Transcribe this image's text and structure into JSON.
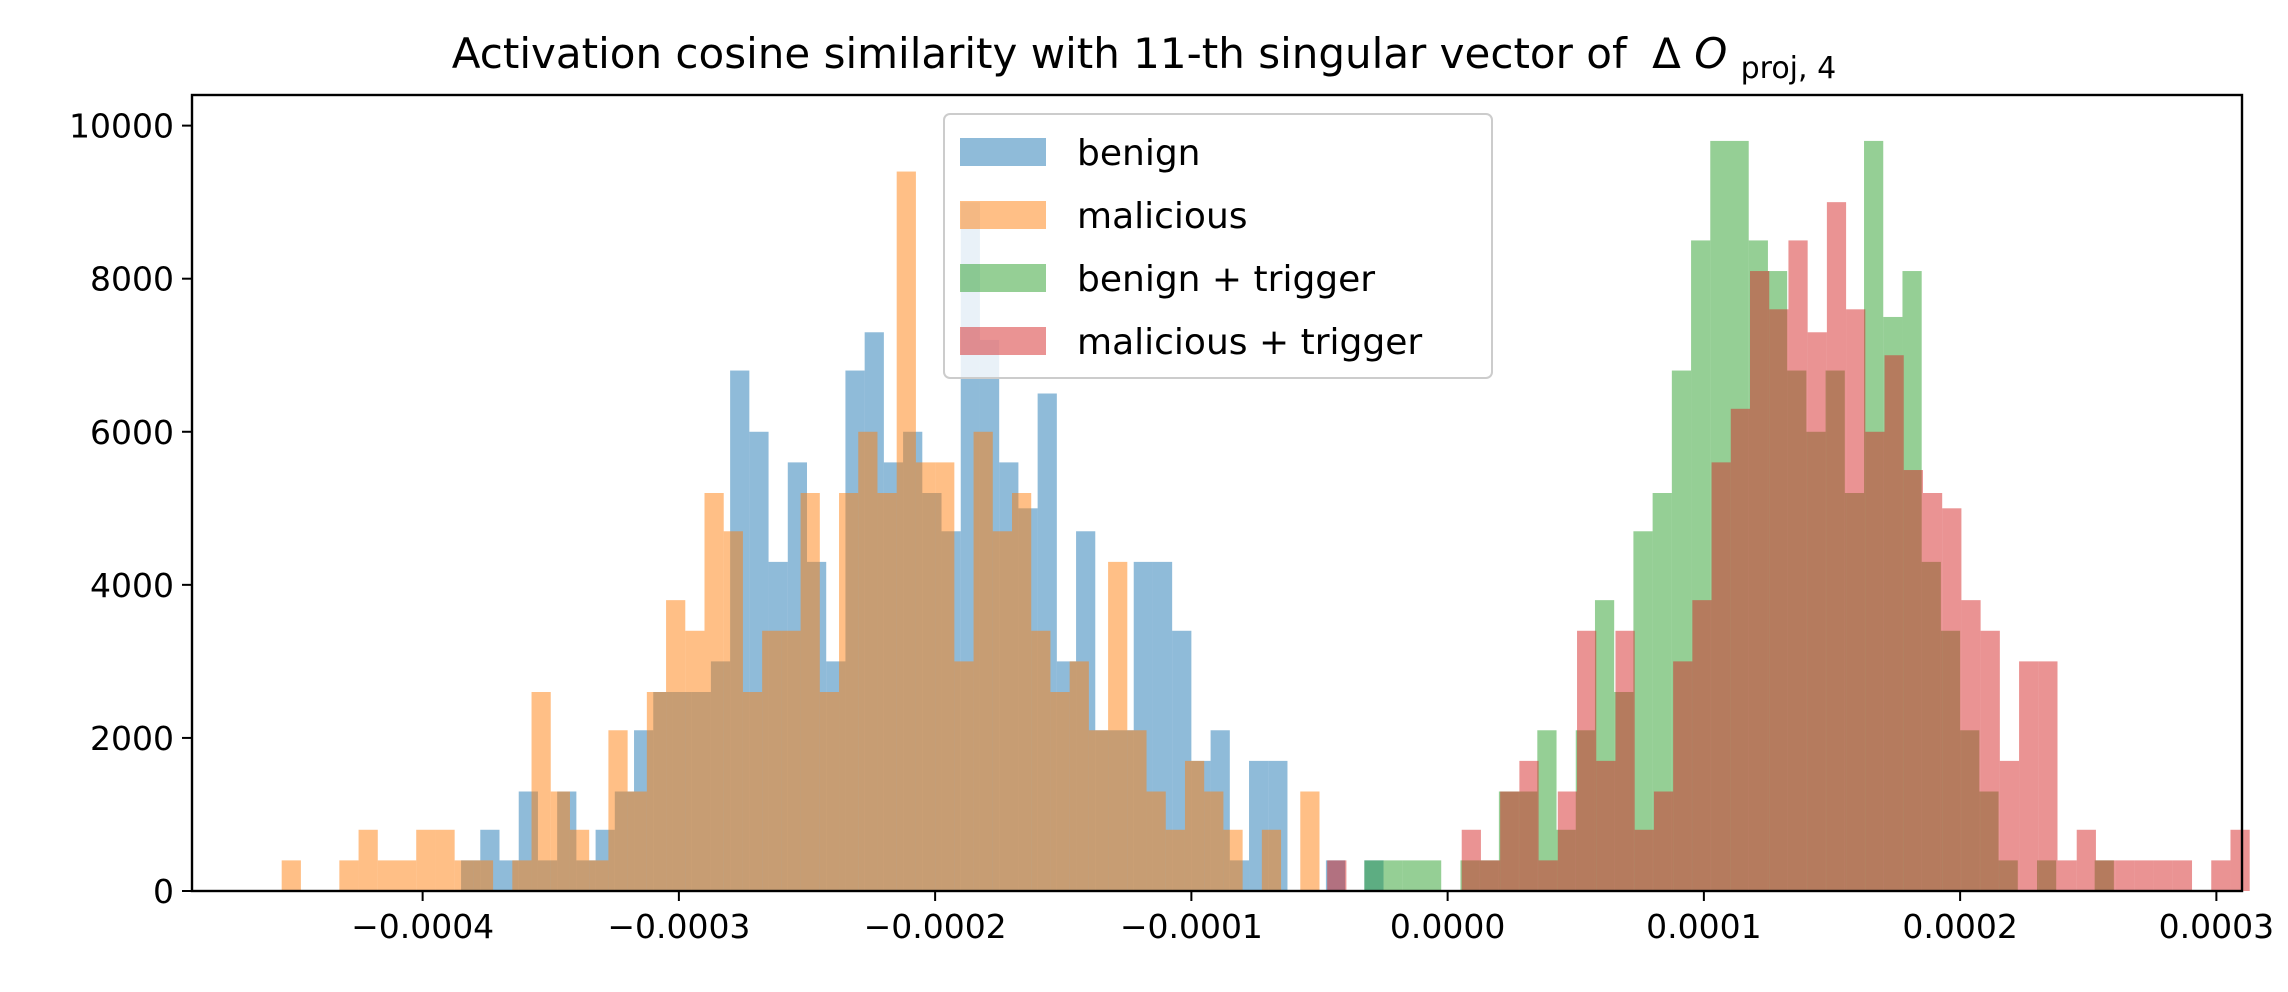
{
  "chart_data": {
    "type": "histogram",
    "title": "Activation cosine similarity with 11-th singular vector of",
    "title_math": {
      "delta": "Δ",
      "symbol": "O",
      "subscript": "proj, 4"
    },
    "xlabel": "",
    "ylabel": "",
    "xlim": [
      -0.00049,
      0.00031
    ],
    "ylim": [
      0,
      10400
    ],
    "bin_width": 7.5e-06,
    "x_ticks": [
      -0.0004,
      -0.0003,
      -0.0002,
      -0.0001,
      0.0,
      0.0001,
      0.0002,
      0.0003
    ],
    "x_tick_labels": [
      "−0.0004",
      "−0.0003",
      "−0.0002",
      "−0.0001",
      "0.0000",
      "0.0001",
      "0.0002",
      "0.0003"
    ],
    "y_ticks": [
      0,
      2000,
      4000,
      6000,
      8000,
      10000
    ],
    "y_tick_labels": [
      "0",
      "2000",
      "4000",
      "6000",
      "8000",
      "10000"
    ],
    "grid": false,
    "legend_position": "upper-center",
    "alpha": 0.5,
    "series": [
      {
        "name": "benign",
        "color": "#1f77b4",
        "bin_start": -0.000385,
        "counts": [
          400,
          800,
          400,
          1300,
          400,
          1300,
          400,
          800,
          1300,
          2100,
          2600,
          2600,
          2600,
          3000,
          6800,
          6000,
          4300,
          5600,
          4300,
          3000,
          6800,
          7300,
          5600,
          6000,
          5200,
          4700,
          9000,
          7200,
          5600,
          5000,
          6500,
          3000,
          4700,
          2100,
          2100,
          4300,
          4300,
          3400,
          1700,
          2100,
          400,
          1700,
          1700,
          0,
          0,
          400,
          0,
          400
        ]
      },
      {
        "name": "malicious",
        "color": "#ff7f0e",
        "bin_start": -0.000455,
        "counts": [
          400,
          0,
          0,
          400,
          800,
          400,
          400,
          800,
          800,
          400,
          400,
          0,
          400,
          2600,
          1300,
          800,
          400,
          2100,
          1300,
          2600,
          3800,
          3400,
          5200,
          4700,
          2600,
          3400,
          3400,
          5200,
          2600,
          5200,
          6000,
          5200,
          9400,
          5600,
          5600,
          3000,
          6000,
          4700,
          5200,
          3400,
          2600,
          3000,
          2100,
          4300,
          2100,
          1300,
          800,
          1700,
          1300,
          800,
          0,
          800,
          0,
          1300
        ]
      },
      {
        "name": "benign + trigger",
        "color": "#2ca02c",
        "bin_start": -3.25e-05,
        "counts": [
          400,
          400,
          400,
          400,
          0,
          400,
          400,
          1300,
          1300,
          2100,
          800,
          2100,
          3800,
          2600,
          4700,
          5200,
          6800,
          8500,
          9800,
          9800,
          8500,
          8100,
          6800,
          6000,
          6800,
          5200,
          9800,
          7500,
          8100,
          4300,
          3400,
          2100,
          1300,
          400,
          0,
          400,
          0,
          0,
          400
        ]
      },
      {
        "name": "malicious + trigger",
        "color": "#d62728",
        "bin_start": -4.7e-05,
        "counts": [
          400,
          0,
          0,
          0,
          0,
          0,
          0,
          800,
          400,
          1300,
          1700,
          400,
          1300,
          3400,
          1700,
          3400,
          800,
          1300,
          3000,
          3800,
          5600,
          6300,
          8100,
          7600,
          8500,
          7300,
          9000,
          7600,
          6000,
          7000,
          5500,
          5200,
          5000,
          3800,
          3400,
          1700,
          3000,
          3000,
          400,
          800,
          400,
          400,
          400,
          400,
          400,
          0,
          400,
          800
        ]
      }
    ]
  }
}
